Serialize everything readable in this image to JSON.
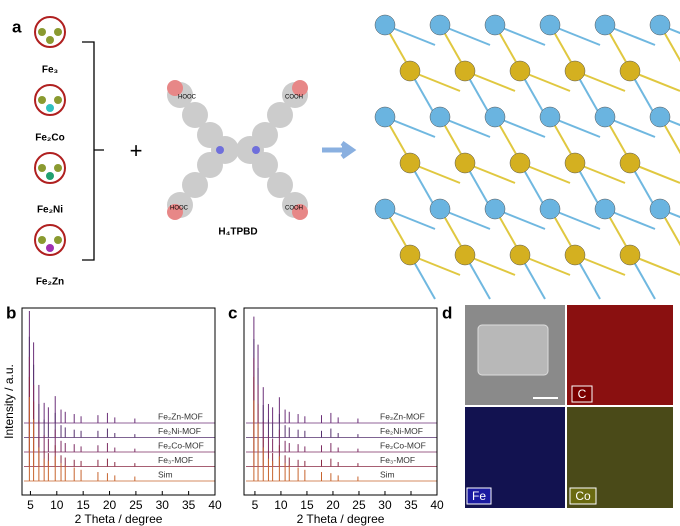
{
  "panel_a": {
    "label": "a",
    "clusters": [
      "Fe₃",
      "Fe₂Co",
      "Fe₂Ni",
      "Fe₂Zn"
    ],
    "plus": "+",
    "ligand": {
      "name": "H₄TPBD",
      "groups": [
        "HOOC",
        "COOH",
        "HOOC",
        "COOH"
      ]
    }
  },
  "chart_data": [
    {
      "type": "stick",
      "panel_label": "b",
      "xlabel": "2 Theta / degree",
      "ylabel": "Intensity / a.u.",
      "xlim": [
        3.4,
        40
      ],
      "xticks": [
        5,
        10,
        15,
        20,
        25,
        30,
        35,
        40
      ],
      "x": [
        4.8,
        5.6,
        6.6,
        7.6,
        8.4,
        9.7,
        10.8,
        11.6,
        13.3,
        14.6,
        17.8,
        19.6,
        21.0,
        24.8
      ],
      "series": [
        {
          "name": "Fe₂Zn-MOF",
          "color": "#6b2f78",
          "values": [
            100,
            72,
            34,
            18,
            14,
            24,
            12,
            10,
            8,
            6,
            7,
            9,
            5,
            4
          ]
        },
        {
          "name": "Fe₂Ni-MOF",
          "color": "#55306e",
          "values": [
            90,
            65,
            30,
            16,
            13,
            22,
            11,
            9,
            7,
            6,
            6,
            8,
            4,
            3
          ]
        },
        {
          "name": "Fe₂Co-MOF",
          "color": "#7d2c63",
          "values": [
            85,
            60,
            28,
            15,
            12,
            20,
            10,
            8,
            7,
            5,
            6,
            8,
            4,
            3
          ]
        },
        {
          "name": "Fe₃-MOF",
          "color": "#8a2a45",
          "values": [
            80,
            58,
            26,
            14,
            12,
            19,
            10,
            8,
            6,
            5,
            6,
            7,
            4,
            3
          ]
        },
        {
          "name": "Sim",
          "color": "#c7642e",
          "values": [
            75,
            55,
            30,
            20,
            18,
            22,
            16,
            14,
            12,
            10,
            8,
            7,
            5,
            4
          ]
        }
      ]
    },
    {
      "type": "stick",
      "panel_label": "c",
      "xlabel": "2 Theta / degree",
      "xlim": [
        2.9,
        40
      ],
      "xticks": [
        5,
        10,
        15,
        20,
        25,
        30,
        35,
        40
      ],
      "x": [
        4.8,
        5.6,
        6.6,
        7.6,
        8.4,
        9.7,
        10.8,
        11.6,
        13.3,
        14.6,
        17.8,
        19.6,
        21.0,
        24.8
      ],
      "series": [
        {
          "name": "Fe₂Zn-MOF",
          "color": "#6b2f78",
          "values": [
            95,
            70,
            32,
            17,
            14,
            23,
            12,
            10,
            8,
            6,
            7,
            9,
            5,
            4
          ]
        },
        {
          "name": "Fe₂Ni-MOF",
          "color": "#55306e",
          "values": [
            88,
            62,
            29,
            16,
            13,
            21,
            11,
            9,
            7,
            6,
            6,
            8,
            4,
            3
          ]
        },
        {
          "name": "Fe₂Co-MOF",
          "color": "#7d2c63",
          "values": [
            84,
            60,
            27,
            15,
            12,
            20,
            10,
            8,
            7,
            5,
            6,
            8,
            4,
            3
          ]
        },
        {
          "name": "Fe₃-MOF",
          "color": "#8a2a45",
          "values": [
            80,
            56,
            26,
            14,
            12,
            19,
            10,
            8,
            6,
            5,
            6,
            7,
            4,
            3
          ]
        },
        {
          "name": "Sim",
          "color": "#c7642e",
          "values": [
            72,
            52,
            30,
            20,
            18,
            22,
            16,
            14,
            12,
            10,
            8,
            7,
            5,
            4
          ]
        }
      ]
    }
  ],
  "panel_d": {
    "label": "d",
    "maps": [
      "C",
      "Fe",
      "Co"
    ]
  }
}
